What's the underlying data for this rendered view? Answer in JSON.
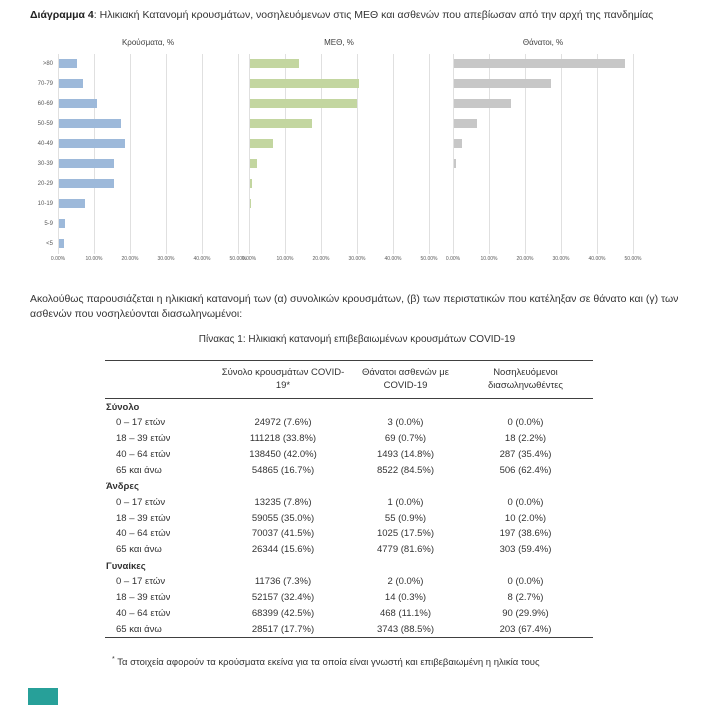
{
  "heading": {
    "label": "Διάγραμμα 4",
    "rest": ": Ηλικιακή Κατανομή κρουσμάτων, νοσηλευόμενων στις ΜΕΘ και ασθενών που απεβίωσαν από την αρχή της πανδημίας"
  },
  "intro": "Ακολούθως παρουσιάζεται η ηλικιακή κατανομή των (α) συνολικών κρουσμάτων, (β) των περιστατικών που κατέληξαν σε θάνατο και (γ) των ασθενών που νοσηλεύονται διασωληνωμένοι:",
  "chart_data": {
    "type": "bar",
    "orientation": "horizontal",
    "categories": [
      ">80",
      "70-79",
      "60-69",
      "50-59",
      "40-49",
      "30-39",
      "20-29",
      "10-19",
      "5-9",
      "<5"
    ],
    "x_ticks": [
      "0.00%",
      "10.00%",
      "20.00%",
      "30.00%",
      "40.00%",
      "50.00%"
    ],
    "xlim": [
      0,
      50
    ],
    "grid": true,
    "panels": [
      {
        "title": "Κρούσματα, %",
        "color": "#9db9da",
        "values": [
          4.9,
          6.7,
          10.5,
          17.2,
          18.3,
          15.4,
          15.3,
          7.3,
          1.7,
          1.3
        ]
      },
      {
        "title": "ΜΕΘ, %",
        "color": "#c3d6a0",
        "values": [
          13.5,
          30.2,
          29.8,
          17.3,
          6.4,
          2.0,
          0.5,
          0.2,
          0,
          0
        ]
      },
      {
        "title": "Θάνατοι, %",
        "color": "#c7c7c7",
        "values": [
          47.5,
          27.0,
          15.8,
          6.4,
          2.2,
          0.5,
          0,
          0,
          0,
          0
        ]
      }
    ]
  },
  "table": {
    "title": "Πίνακας 1: Ηλικιακή κατανομή επιβεβαιωμένων κρουσμάτων COVID-19",
    "columns": [
      "",
      "Σύνολο κρουσμάτων COVID-19*",
      "Θάνατοι ασθενών με COVID-19",
      "Νοσηλευόμενοι διασωληνωθέντες"
    ],
    "sections": [
      {
        "name": "Σύνολο",
        "rows": [
          [
            "0 – 17 ετών",
            "24972 (7.6%)",
            "3 (0.0%)",
            "0 (0.0%)"
          ],
          [
            "18 – 39 ετών",
            "111218 (33.8%)",
            "69 (0.7%)",
            "18 (2.2%)"
          ],
          [
            "40 – 64 ετών",
            "138450 (42.0%)",
            "1493 (14.8%)",
            "287 (35.4%)"
          ],
          [
            "65 και άνω",
            "54865 (16.7%)",
            "8522 (84.5%)",
            "506 (62.4%)"
          ]
        ]
      },
      {
        "name": "Άνδρες",
        "rows": [
          [
            "0 – 17 ετών",
            "13235 (7.8%)",
            "1 (0.0%)",
            "0 (0.0%)"
          ],
          [
            "18 – 39 ετών",
            "59055 (35.0%)",
            "55 (0.9%)",
            "10 (2.0%)"
          ],
          [
            "40 – 64 ετών",
            "70037 (41.5%)",
            "1025 (17.5%)",
            "197 (38.6%)"
          ],
          [
            "65 και άνω",
            "26344 (15.6%)",
            "4779 (81.6%)",
            "303 (59.4%)"
          ]
        ]
      },
      {
        "name": "Γυναίκες",
        "rows": [
          [
            "0 – 17 ετών",
            "11736 (7.3%)",
            "2 (0.0%)",
            "0 (0.0%)"
          ],
          [
            "18 – 39 ετών",
            "52157 (32.4%)",
            "14 (0.3%)",
            "8 (2.7%)"
          ],
          [
            "40 – 64 ετών",
            "68399 (42.5%)",
            "468 (11.1%)",
            "90 (29.9%)"
          ],
          [
            "65 και άνω",
            "28517 (17.7%)",
            "3743 (88.5%)",
            "203 (67.4%)"
          ]
        ]
      },
      {
        "name": "",
        "rows": []
      }
    ],
    "footnote_marker": "*",
    "footnote": "Τα στοιχεία αφορούν τα κρούσματα εκείνα για τα οποία είναι γνωστή και επιβεβαιωμένη η ηλικία τους"
  },
  "colors": {
    "cases_bar": "#9db9da",
    "icu_bar": "#c3d6a0",
    "deaths_bar": "#c7c7c7",
    "gridline": "#e0e0e0",
    "table_border": "#404040",
    "accent_square": "#27a099"
  }
}
